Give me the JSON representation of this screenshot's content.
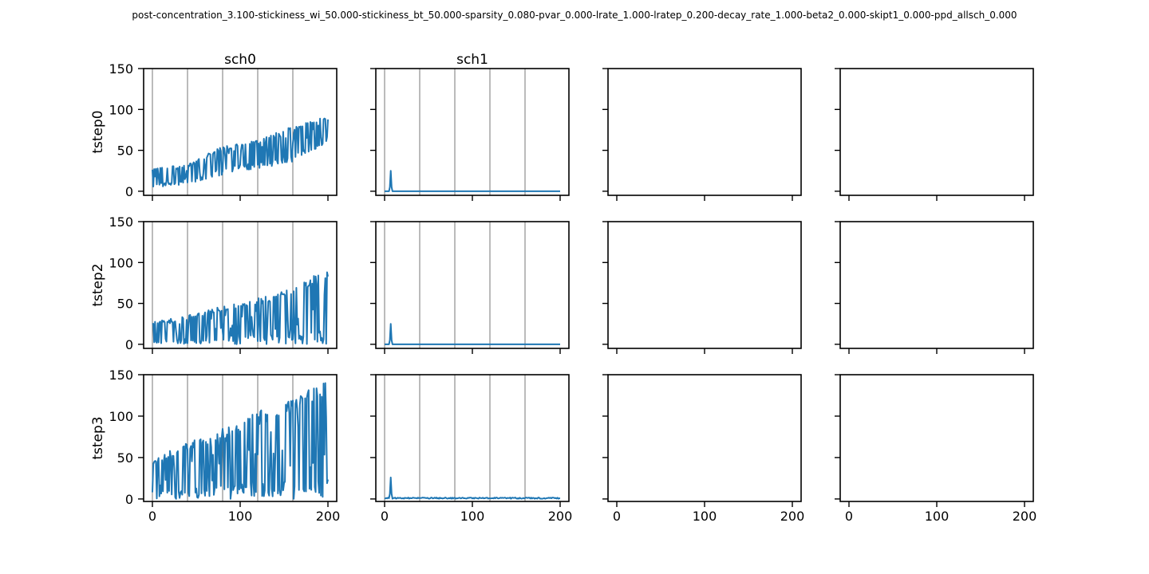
{
  "figure": {
    "suptitle": "post-concentration_3.100-stickiness_wi_50.000-stickiness_bt_50.000-sparsity_0.080-pvar_0.000-lrate_1.000-lratep_0.200-decay_rate_1.000-beta2_0.000-skipt1_0.000-ppd_allsch_0.000"
  },
  "chart_data": {
    "type": "line",
    "grid": "vertical lines at x = 0, 40, 80, 120, 160 on populated panels",
    "line_color": "#1f77b4",
    "columns": [
      "sch0",
      "sch1",
      "",
      ""
    ],
    "rows": [
      "tstep0",
      "tstep2",
      "tstep3"
    ],
    "xlim": [
      -10,
      210
    ],
    "xticks": [
      0,
      100,
      200
    ],
    "xtick_labels": [
      "0",
      "100",
      "200"
    ],
    "row_ylims": [
      [
        -5,
        150
      ],
      [
        -5,
        150
      ],
      [
        -3,
        150
      ]
    ],
    "yticks": [
      0,
      50,
      100,
      150
    ],
    "ytick_labels": [
      "0",
      "50",
      "100",
      "150"
    ],
    "vlines": [
      0,
      40,
      80,
      120,
      160
    ],
    "series_note": "sch0 traces oscillate with a rising envelope; sch1 traces show one spike near x=7 then stay near zero",
    "panels": [
      {
        "row": 0,
        "col": 0,
        "has_data": true,
        "envelope": [
          [
            0,
            28
          ],
          [
            40,
            33
          ],
          [
            80,
            55
          ],
          [
            120,
            62
          ],
          [
            160,
            80
          ],
          [
            200,
            92
          ]
        ],
        "baseline": [
          [
            0,
            5
          ],
          [
            40,
            8
          ],
          [
            80,
            20
          ],
          [
            120,
            28
          ],
          [
            160,
            35
          ],
          [
            200,
            60
          ]
        ]
      },
      {
        "row": 0,
        "col": 1,
        "has_data": true,
        "spike": [
          7,
          25
        ],
        "floor": 0
      },
      {
        "row": 0,
        "col": 2,
        "has_data": false
      },
      {
        "row": 0,
        "col": 3,
        "has_data": false
      },
      {
        "row": 1,
        "col": 0,
        "has_data": true,
        "envelope": [
          [
            0,
            27
          ],
          [
            40,
            35
          ],
          [
            80,
            48
          ],
          [
            120,
            57
          ],
          [
            160,
            68
          ],
          [
            200,
            95
          ]
        ],
        "baseline": [
          [
            0,
            0
          ],
          [
            40,
            0
          ],
          [
            80,
            0
          ],
          [
            120,
            0
          ],
          [
            160,
            0
          ],
          [
            200,
            0
          ]
        ]
      },
      {
        "row": 1,
        "col": 1,
        "has_data": true,
        "spike": [
          7,
          25
        ],
        "floor": 0
      },
      {
        "row": 1,
        "col": 2,
        "has_data": false
      },
      {
        "row": 1,
        "col": 3,
        "has_data": false
      },
      {
        "row": 2,
        "col": 0,
        "has_data": true,
        "envelope": [
          [
            0,
            48
          ],
          [
            40,
            68
          ],
          [
            80,
            85
          ],
          [
            120,
            105
          ],
          [
            160,
            125
          ],
          [
            200,
            145
          ]
        ],
        "baseline": [
          [
            0,
            0
          ],
          [
            40,
            0
          ],
          [
            80,
            0
          ],
          [
            120,
            0
          ],
          [
            160,
            0
          ],
          [
            200,
            0
          ]
        ]
      },
      {
        "row": 2,
        "col": 1,
        "has_data": true,
        "spike": [
          7,
          26
        ],
        "floor": 1
      },
      {
        "row": 2,
        "col": 2,
        "has_data": false
      },
      {
        "row": 2,
        "col": 3,
        "has_data": false
      }
    ]
  }
}
